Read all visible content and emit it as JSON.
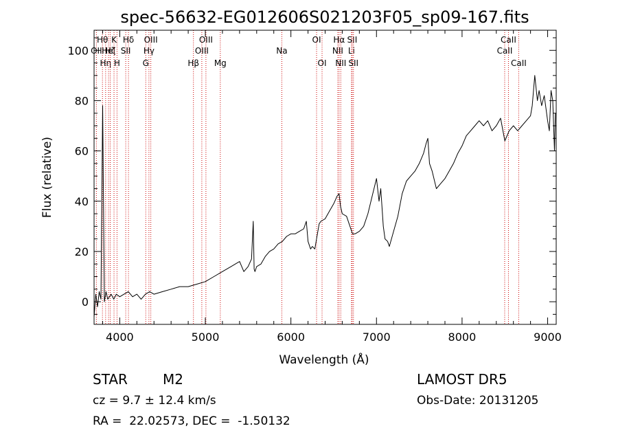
{
  "chart_data": {
    "type": "line",
    "title": "spec-56632-EG012606S021203F05_sp09-167.fits",
    "xlabel": "Wavelength (Å)",
    "ylabel": "Flux (relative)",
    "xlim": [
      3700,
      9100
    ],
    "ylim": [
      -9,
      108
    ],
    "xticks": [
      4000,
      5000,
      6000,
      7000,
      8000,
      9000
    ],
    "yticks": [
      0,
      20,
      40,
      60,
      80,
      100
    ],
    "xtick_labels": [
      "4000",
      "5000",
      "6000",
      "7000",
      "8000",
      "9000"
    ],
    "ytick_labels": [
      "0",
      "20",
      "40",
      "60",
      "80",
      "100"
    ],
    "grid": false,
    "line_color": "#000000",
    "marker_color": "#cc0000",
    "series": [
      {
        "x": [
          3700,
          3720,
          3740,
          3760,
          3780,
          3800,
          3820,
          3840,
          3860,
          3880,
          3900,
          3930,
          3960,
          4000,
          4050,
          4100,
          4150,
          4200,
          4250,
          4300,
          4350,
          4400,
          4500,
          4600,
          4700,
          4800,
          4900,
          5000,
          5100,
          5200,
          5300,
          5400,
          5450,
          5500,
          5540,
          5560,
          5570,
          5580,
          5600,
          5650,
          5700,
          5750,
          5800,
          5850,
          5900,
          5950,
          6000,
          6050,
          6100,
          6150,
          6180,
          6200,
          6230,
          6250,
          6280,
          6300,
          6330,
          6350,
          6400,
          6450,
          6500,
          6540,
          6563,
          6580,
          6600,
          6650,
          6700,
          6720,
          6750,
          6800,
          6850,
          6900,
          6950,
          7000,
          7030,
          7050,
          7080,
          7100,
          7130,
          7150,
          7200,
          7250,
          7300,
          7350,
          7400,
          7450,
          7500,
          7550,
          7580,
          7600,
          7620,
          7650,
          7700,
          7750,
          7800,
          7850,
          7900,
          7950,
          8000,
          8050,
          8100,
          8150,
          8200,
          8250,
          8300,
          8350,
          8400,
          8450,
          8500,
          8550,
          8600,
          8650,
          8700,
          8750,
          8800,
          8820,
          8850,
          8880,
          8900,
          8930,
          8960,
          9000,
          9020,
          9040,
          9060,
          9080,
          9090
        ],
        "y": [
          -6,
          3,
          -2,
          4,
          1,
          78,
          0,
          4,
          1,
          2,
          3,
          1,
          3,
          2,
          3,
          4,
          2,
          3,
          1,
          3,
          4,
          3,
          4,
          5,
          6,
          6,
          7,
          8,
          10,
          12,
          14,
          16,
          12,
          14,
          17,
          32,
          13,
          12,
          14,
          15,
          18,
          20,
          21,
          23,
          24,
          26,
          27,
          27,
          28,
          29,
          32,
          24,
          21,
          22,
          21,
          25,
          31,
          32,
          33,
          36,
          39,
          42,
          43,
          38,
          35,
          34,
          29,
          27,
          27,
          28,
          30,
          35,
          42,
          49,
          40,
          45,
          30,
          25,
          24,
          22,
          28,
          34,
          43,
          48,
          50,
          52,
          55,
          59,
          63,
          65,
          55,
          52,
          45,
          47,
          49,
          52,
          55,
          59,
          62,
          66,
          68,
          70,
          72,
          70,
          72,
          68,
          70,
          73,
          64,
          68,
          70,
          68,
          70,
          72,
          74,
          78,
          90,
          80,
          84,
          78,
          82,
          72,
          68,
          84,
          80,
          60,
          75
        ]
      }
    ],
    "line_markers": [
      {
        "x": 3727,
        "label": "OII",
        "row": 1
      },
      {
        "x": 3798,
        "label": "Hθ",
        "row": 0
      },
      {
        "x": 3835,
        "label": "Hη",
        "row": 2
      },
      {
        "x": 3869,
        "label": "HeI",
        "row": 1
      },
      {
        "x": 3889,
        "label": "Hζ",
        "row": 1
      },
      {
        "x": 3933,
        "label": "K",
        "row": 0
      },
      {
        "x": 3968,
        "label": "H",
        "row": 2
      },
      {
        "x": 4070,
        "label": "SII",
        "row": 1
      },
      {
        "x": 4102,
        "label": "Hδ",
        "row": 0
      },
      {
        "x": 4304,
        "label": "G",
        "row": 2
      },
      {
        "x": 4341,
        "label": "Hγ",
        "row": 1
      },
      {
        "x": 4363,
        "label": "OIII",
        "row": 0
      },
      {
        "x": 4861,
        "label": "Hβ",
        "row": 2
      },
      {
        "x": 4959,
        "label": "OIII",
        "row": 1
      },
      {
        "x": 5007,
        "label": "OIII",
        "row": 0
      },
      {
        "x": 5175,
        "label": "Mg",
        "row": 2
      },
      {
        "x": 5894,
        "label": "Na",
        "row": 1
      },
      {
        "x": 6300,
        "label": "OI",
        "row": 0
      },
      {
        "x": 6364,
        "label": "OI",
        "row": 2
      },
      {
        "x": 6548,
        "label": "NII",
        "row": 1
      },
      {
        "x": 6563,
        "label": "Hα",
        "row": 0
      },
      {
        "x": 6583,
        "label": "NII",
        "row": 2
      },
      {
        "x": 6708,
        "label": "Li",
        "row": 1
      },
      {
        "x": 6716,
        "label": "SII",
        "row": 0
      },
      {
        "x": 6731,
        "label": "SII",
        "row": 2
      },
      {
        "x": 8498,
        "label": "CaII",
        "row": 1
      },
      {
        "x": 8542,
        "label": "CaII",
        "row": 0
      },
      {
        "x": 8662,
        "label": "CaII",
        "row": 2
      }
    ]
  },
  "info": {
    "object_class": "STAR",
    "subclass": "M2",
    "survey": "LAMOST DR5",
    "redshift": "cz = 9.7 ± 12.4 km/s",
    "obs_date": "Obs-Date: 20131205",
    "coordinates": "RA =  22.02573, DEC =  -1.50132"
  }
}
